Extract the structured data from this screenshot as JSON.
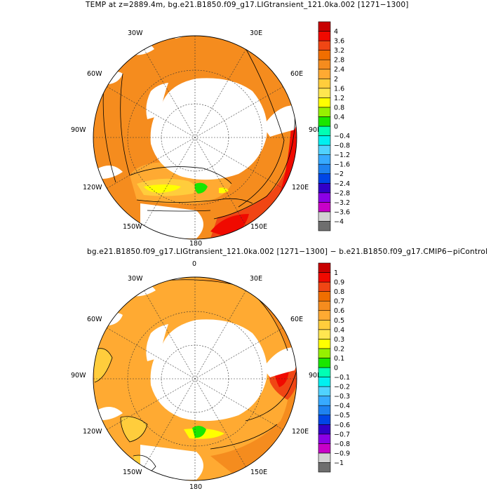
{
  "panels": [
    {
      "title": "TEMP at z=2889.4m, bg.e21.B1850.f09_g17.LIGtransient_121.0ka.002 [1271−1300]",
      "center": [
        278,
        196
      ],
      "radius": 145,
      "longitude_labels": [
        "30W",
        "30E",
        "60W",
        "60E",
        "90W",
        "90E",
        "120W",
        "120E",
        "150W",
        "150E",
        "180"
      ],
      "colorbar": {
        "colors": [
          "#6e6e6e",
          "#d2d2d2",
          "#c800c8",
          "#8c00e6",
          "#3200c8",
          "#0046e6",
          "#1e82f0",
          "#37aaff",
          "#50d2ff",
          "#00f0f0",
          "#00ffb4",
          "#19e600",
          "#96f000",
          "#ffff00",
          "#ffe650",
          "#ffcd3c",
          "#ffaa32",
          "#f58c1e",
          "#f06e00",
          "#f04614",
          "#f00a00",
          "#c80000"
        ],
        "labels": [
          "4",
          "3.6",
          "3.2",
          "2.8",
          "2.4",
          "2",
          "1.6",
          "1.2",
          "0.8",
          "0.4",
          "0",
          "−0.4",
          "−0.8",
          "−1.2",
          "−1.6",
          "−2",
          "−2.4",
          "−2.8",
          "−3.2",
          "−3.6",
          "−4"
        ]
      }
    },
    {
      "title": "bg.e21.B1850.f09_g17.LIGtransient_121.0ka.002 [1271−1300] − b.e21.B1850.f09_g17.CMIP6−piControl",
      "center": [
        278,
        540
      ],
      "radius": 145,
      "longitude_labels": [
        "0",
        "30W",
        "30E",
        "60W",
        "60E",
        "90W",
        "90E",
        "120W",
        "120E",
        "150W",
        "150E",
        "180"
      ],
      "colorbar": {
        "colors": [
          "#6e6e6e",
          "#d2d2d2",
          "#c800c8",
          "#8c00e6",
          "#3200c8",
          "#0046e6",
          "#1e82f0",
          "#37aaff",
          "#50d2ff",
          "#00f0f0",
          "#00ffb4",
          "#19e600",
          "#96f000",
          "#ffff00",
          "#ffe650",
          "#ffcd3c",
          "#ffaa32",
          "#f58c1e",
          "#f06e00",
          "#f04614",
          "#f00a00",
          "#c80000"
        ],
        "labels": [
          "1",
          "0.9",
          "0.8",
          "0.7",
          "0.6",
          "0.5",
          "0.4",
          "0.3",
          "0.2",
          "0.1",
          "0",
          "−0.1",
          "−0.2",
          "−0.3",
          "−0.4",
          "−0.5",
          "−0.6",
          "−0.7",
          "−0.8",
          "−0.9",
          "−1"
        ]
      }
    }
  ]
}
